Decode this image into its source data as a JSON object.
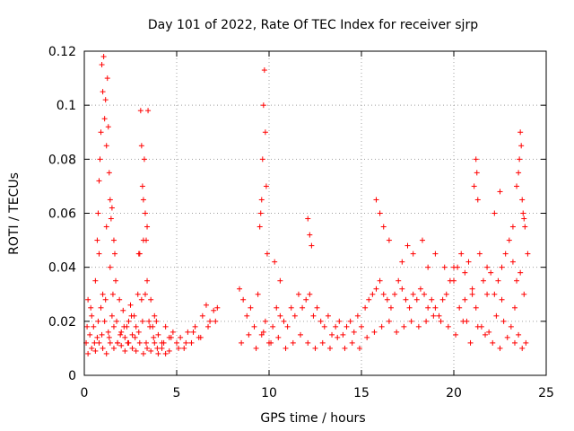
{
  "chart_data": {
    "type": "scatter",
    "title": "Day 101 of 2022, Rate Of TEC Index for receiver sjrp",
    "xlabel": "GPS time / hours",
    "ylabel": "ROTI / TECUs",
    "xlim": [
      0,
      25
    ],
    "ylim": [
      0,
      0.12
    ],
    "xticks": [
      0,
      5,
      10,
      15,
      20,
      25
    ],
    "xtick_labels": [
      "0",
      "5",
      "10",
      "15",
      "20",
      "25"
    ],
    "yticks": [
      0,
      0.02,
      0.04,
      0.06,
      0.08,
      0.1,
      0.12
    ],
    "ytick_labels": [
      "0",
      "0.02",
      "0.04",
      "0.06",
      "0.08",
      "0.1",
      "0.12"
    ],
    "grid": true,
    "marker": "+",
    "series": [
      {
        "name": "ROTI",
        "color": "#ff0000",
        "x": [
          0.1,
          0.2,
          0.3,
          0.4,
          0.5,
          0.6,
          0.7,
          0.8,
          0.9,
          1.0,
          1.1,
          1.2,
          1.3,
          1.4,
          1.5,
          1.6,
          1.7,
          1.8,
          1.9,
          2.0,
          2.1,
          2.2,
          2.3,
          2.4,
          2.5,
          2.6,
          2.7,
          2.8,
          2.9,
          3.0,
          3.1,
          3.2,
          3.3,
          3.4,
          3.5,
          3.6,
          3.7,
          3.8,
          3.9,
          4.0,
          4.2,
          4.4,
          4.6,
          4.8,
          5.0,
          5.2,
          5.4,
          5.6,
          5.8,
          6.0,
          6.2,
          6.4,
          6.6,
          6.8,
          7.0,
          7.2,
          0.15,
          0.35,
          0.55,
          0.75,
          0.95,
          1.15,
          1.35,
          1.55,
          1.75,
          1.95,
          2.15,
          2.35,
          2.55,
          2.75,
          2.95,
          3.15,
          3.35,
          3.55,
          3.75,
          3.95,
          4.3,
          4.7,
          5.1,
          5.5,
          5.9,
          6.3,
          6.7,
          7.1,
          0.9,
          0.95,
          1.0,
          1.05,
          1.1,
          1.15,
          1.2,
          1.25,
          1.3,
          1.35,
          1.4,
          0.7,
          0.75,
          0.8,
          0.85,
          1.45,
          1.5,
          1.6,
          1.65,
          3.05,
          3.1,
          3.15,
          3.2,
          3.25,
          3.3,
          3.35,
          3.4,
          2.95,
          3.45,
          0.2,
          0.4,
          0.6,
          0.8,
          1.0,
          1.2,
          1.4,
          1.6,
          1.8,
          2.0,
          2.2,
          2.4,
          2.6,
          2.8,
          3.0,
          3.2,
          3.4,
          3.6,
          3.8,
          4.0,
          4.2,
          4.4,
          4.6,
          8.4,
          8.6,
          8.8,
          9.0,
          9.2,
          9.4,
          9.6,
          9.8,
          10.0,
          10.2,
          10.4,
          10.6,
          10.8,
          11.0,
          11.2,
          11.4,
          11.6,
          11.8,
          12.0,
          12.2,
          12.4,
          12.6,
          12.8,
          13.0,
          13.2,
          13.4,
          13.6,
          13.8,
          14.0,
          14.2,
          14.4,
          14.6,
          14.8,
          15.0,
          15.2,
          15.4,
          15.6,
          15.8,
          16.0,
          16.2,
          16.4,
          16.6,
          16.8,
          17.0,
          17.2,
          17.4,
          17.6,
          17.8,
          18.0,
          18.2,
          18.4,
          18.6,
          18.8,
          19.0,
          19.2,
          19.4,
          19.6,
          19.8,
          20.0,
          8.5,
          8.9,
          9.3,
          9.7,
          10.1,
          10.5,
          10.9,
          11.3,
          11.7,
          12.1,
          12.5,
          12.9,
          13.3,
          13.7,
          14.1,
          14.5,
          14.9,
          15.3,
          15.7,
          16.1,
          16.5,
          16.9,
          17.3,
          17.7,
          18.1,
          18.5,
          18.9,
          19.3,
          19.7,
          9.55,
          9.6,
          9.65,
          9.7,
          9.75,
          9.8,
          9.85,
          9.5,
          9.9,
          10.3,
          10.6,
          12.1,
          12.2,
          12.3,
          15.8,
          16.0,
          16.2,
          16.5,
          17.2,
          17.5,
          17.8,
          18.3,
          18.6,
          19.0,
          19.5,
          20.0,
          20.2,
          20.4,
          20.6,
          20.8,
          21.0,
          21.2,
          21.4,
          21.6,
          21.8,
          22.0,
          22.2,
          22.4,
          22.6,
          22.8,
          23.0,
          23.2,
          23.4,
          23.6,
          23.8,
          24.0,
          20.1,
          20.5,
          20.9,
          21.3,
          21.7,
          22.1,
          22.5,
          22.9,
          23.3,
          23.7,
          21.1,
          21.2,
          21.3,
          21.25,
          22.2,
          22.5,
          23.2,
          23.4,
          23.5,
          23.55,
          23.6,
          23.65,
          23.7,
          23.75,
          23.8,
          23.85,
          20.3,
          20.7,
          21.5,
          21.9,
          22.3,
          22.7,
          23.1,
          23.5,
          23.9,
          20.6,
          21.0,
          21.8,
          22.6,
          23.3
        ],
        "y": [
          0.012,
          0.028,
          0.015,
          0.022,
          0.018,
          0.035,
          0.014,
          0.045,
          0.025,
          0.03,
          0.02,
          0.055,
          0.016,
          0.04,
          0.022,
          0.018,
          0.035,
          0.012,
          0.028,
          0.016,
          0.024,
          0.014,
          0.018,
          0.02,
          0.026,
          0.015,
          0.022,
          0.018,
          0.03,
          0.045,
          0.028,
          0.05,
          0.03,
          0.035,
          0.02,
          0.028,
          0.018,
          0.022,
          0.02,
          0.015,
          0.012,
          0.018,
          0.014,
          0.016,
          0.012,
          0.014,
          0.01,
          0.016,
          0.012,
          0.018,
          0.014,
          0.022,
          0.026,
          0.02,
          0.024,
          0.025,
          0.018,
          0.025,
          0.012,
          0.02,
          0.015,
          0.028,
          0.014,
          0.03,
          0.02,
          0.015,
          0.018,
          0.012,
          0.022,
          0.014,
          0.016,
          0.02,
          0.012,
          0.018,
          0.014,
          0.01,
          0.012,
          0.014,
          0.01,
          0.012,
          0.016,
          0.014,
          0.018,
          0.02,
          0.09,
          0.115,
          0.105,
          0.118,
          0.095,
          0.102,
          0.085,
          0.11,
          0.092,
          0.075,
          0.065,
          0.05,
          0.06,
          0.072,
          0.08,
          0.058,
          0.062,
          0.05,
          0.045,
          0.098,
          0.085,
          0.07,
          0.065,
          0.08,
          0.06,
          0.05,
          0.055,
          0.045,
          0.098,
          0.008,
          0.01,
          0.009,
          0.012,
          0.01,
          0.008,
          0.012,
          0.01,
          0.012,
          0.011,
          0.009,
          0.012,
          0.01,
          0.009,
          0.012,
          0.008,
          0.01,
          0.009,
          0.012,
          0.008,
          0.01,
          0.008,
          0.009,
          0.032,
          0.028,
          0.022,
          0.025,
          0.018,
          0.03,
          0.015,
          0.02,
          0.012,
          0.018,
          0.025,
          0.022,
          0.02,
          0.018,
          0.025,
          0.022,
          0.03,
          0.025,
          0.028,
          0.03,
          0.022,
          0.025,
          0.02,
          0.018,
          0.022,
          0.015,
          0.018,
          0.02,
          0.015,
          0.018,
          0.02,
          0.016,
          0.022,
          0.018,
          0.025,
          0.028,
          0.03,
          0.032,
          0.035,
          0.03,
          0.028,
          0.025,
          0.03,
          0.035,
          0.032,
          0.028,
          0.025,
          0.03,
          0.028,
          0.032,
          0.03,
          0.025,
          0.028,
          0.025,
          0.022,
          0.028,
          0.03,
          0.035,
          0.04,
          0.012,
          0.015,
          0.01,
          0.016,
          0.012,
          0.014,
          0.01,
          0.012,
          0.015,
          0.012,
          0.01,
          0.012,
          0.01,
          0.014,
          0.01,
          0.012,
          0.01,
          0.014,
          0.016,
          0.018,
          0.02,
          0.016,
          0.018,
          0.02,
          0.018,
          0.02,
          0.022,
          0.02,
          0.018,
          0.06,
          0.065,
          0.08,
          0.1,
          0.113,
          0.09,
          0.07,
          0.055,
          0.045,
          0.042,
          0.035,
          0.058,
          0.052,
          0.048,
          0.065,
          0.06,
          0.055,
          0.05,
          0.042,
          0.048,
          0.045,
          0.05,
          0.04,
          0.045,
          0.04,
          0.035,
          0.04,
          0.045,
          0.038,
          0.042,
          0.03,
          0.025,
          0.045,
          0.035,
          0.04,
          0.038,
          0.03,
          0.035,
          0.04,
          0.045,
          0.05,
          0.042,
          0.035,
          0.038,
          0.03,
          0.045,
          0.015,
          0.02,
          0.012,
          0.018,
          0.015,
          0.012,
          0.01,
          0.014,
          0.012,
          0.01,
          0.07,
          0.08,
          0.065,
          0.075,
          0.06,
          0.068,
          0.055,
          0.07,
          0.075,
          0.08,
          0.09,
          0.085,
          0.065,
          0.06,
          0.058,
          0.055,
          0.025,
          0.02,
          0.018,
          0.016,
          0.022,
          0.02,
          0.018,
          0.015,
          0.012,
          0.028,
          0.032,
          0.03,
          0.028,
          0.025
        ]
      }
    ]
  }
}
